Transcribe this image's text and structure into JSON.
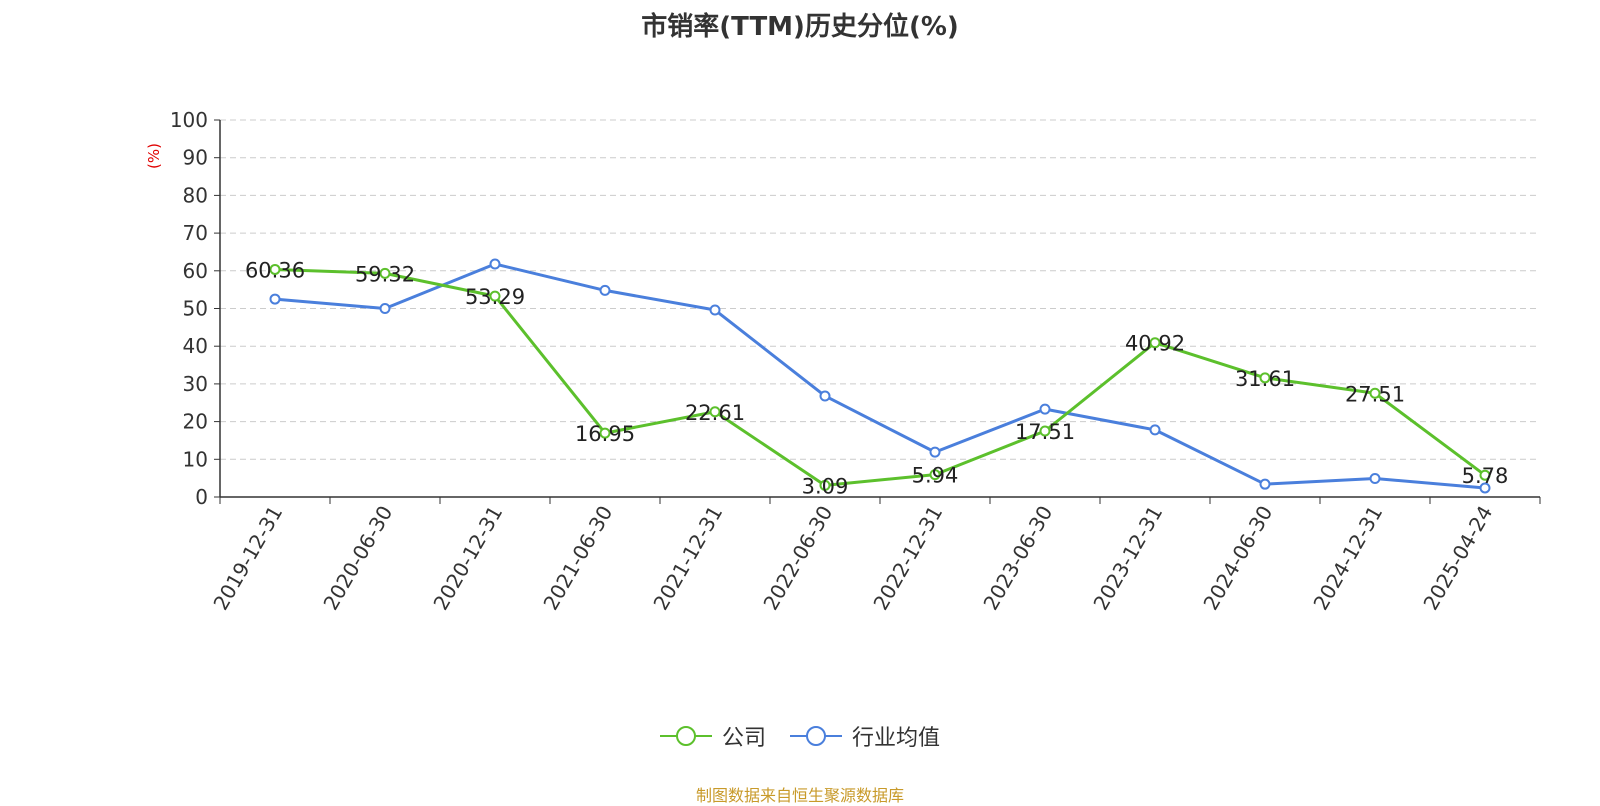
{
  "chart_data": {
    "type": "line",
    "title": "市销率(TTM)历史分位(%)",
    "ylabel": "(%)",
    "ylim": [
      0,
      100
    ],
    "yticks": [
      0,
      10,
      20,
      30,
      40,
      50,
      60,
      70,
      80,
      90,
      100
    ],
    "grid": true,
    "legend_position": "bottom",
    "categories": [
      "2019-12-31",
      "2020-06-30",
      "2020-12-31",
      "2021-06-30",
      "2021-12-31",
      "2022-06-30",
      "2022-12-31",
      "2023-06-30",
      "2023-12-31",
      "2024-06-30",
      "2024-12-31",
      "2025-04-24"
    ],
    "series": [
      {
        "name": "公司",
        "color": "#5cc02c",
        "show_labels": true,
        "values": [
          60.36,
          59.32,
          53.29,
          16.95,
          22.61,
          3.09,
          5.94,
          17.51,
          40.92,
          31.61,
          27.51,
          5.78
        ]
      },
      {
        "name": "行业均值",
        "color": "#4a7fdc",
        "show_labels": false,
        "values": [
          52.5,
          50.0,
          61.8,
          54.8,
          49.6,
          26.8,
          11.9,
          23.3,
          17.8,
          3.4,
          4.9,
          2.4
        ]
      }
    ]
  },
  "source_text": "制图数据来自恒生聚源数据库"
}
